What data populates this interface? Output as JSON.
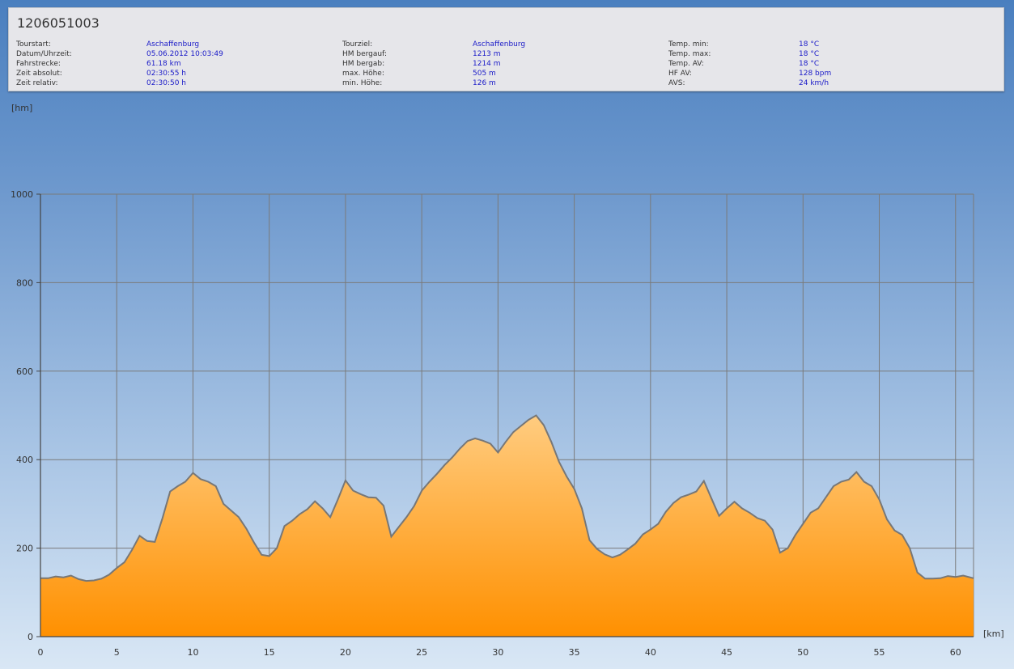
{
  "header": {
    "title": "1206051003",
    "columns": [
      [
        {
          "label": "Tourstart:",
          "value": "Aschaffenburg"
        },
        {
          "label": "Datum/Uhrzeit:",
          "value": "05.06.2012 10:03:49"
        },
        {
          "label": "Fahrstrecke:",
          "value": "61.18 km"
        },
        {
          "label": "Zeit absolut:",
          "value": "02:30:55 h"
        },
        {
          "label": "Zeit relativ:",
          "value": "02:30:50 h"
        }
      ],
      [
        {
          "label": "Tourziel:",
          "value": "Aschaffenburg"
        },
        {
          "label": "HM bergauf:",
          "value": "1213 m"
        },
        {
          "label": "HM bergab:",
          "value": "1214 m"
        },
        {
          "label": "max. Höhe:",
          "value": "505 m"
        },
        {
          "label": "min. Höhe:",
          "value": "126 m"
        }
      ],
      [
        {
          "label": "Temp. min:",
          "value": "18 °C"
        },
        {
          "label": "Temp. max:",
          "value": "18 °C"
        },
        {
          "label": "Temp. AV:",
          "value": "18 °C"
        },
        {
          "label": "HF AV:",
          "value": "128 bpm"
        },
        {
          "label": "AVS:",
          "value": "24 km/h"
        }
      ]
    ]
  },
  "colors": {
    "fill_top": "#ffcc80",
    "fill_bottom": "#ff9000",
    "line": "#777777",
    "grid": "#7a7a7a"
  },
  "chart_data": {
    "type": "area",
    "title": "",
    "xlabel": "[km]",
    "ylabel": "[hm]",
    "xlim": [
      0,
      61.18
    ],
    "ylim": [
      0,
      1000
    ],
    "x_ticks": [
      0,
      5,
      10,
      15,
      20,
      25,
      30,
      35,
      40,
      45,
      50,
      55,
      60
    ],
    "y_ticks": [
      0,
      200,
      400,
      600,
      800,
      1000
    ],
    "grid": true,
    "series": [
      {
        "x": [
          0,
          0.5,
          1,
          1.5,
          2,
          2.5,
          3,
          3.5,
          4,
          4.5,
          5,
          5.5,
          6,
          6.5,
          7,
          7.5,
          8,
          8.5,
          9,
          9.5,
          10,
          10.5,
          11,
          11.5,
          12,
          12.5,
          13,
          13.5,
          14,
          14.5,
          15,
          15.5,
          16,
          16.5,
          17,
          17.5,
          18,
          18.5,
          19,
          19.5,
          20,
          20.5,
          21,
          21.5,
          22,
          22.5,
          23,
          23.5,
          24,
          24.5,
          25,
          25.5,
          26,
          26.5,
          27,
          27.5,
          28,
          28.5,
          29,
          29.5,
          30,
          30.5,
          31,
          31.5,
          32,
          32.5,
          33,
          33.5,
          34,
          34.5,
          35,
          35.5,
          36,
          36.5,
          37,
          37.5,
          38,
          38.5,
          39,
          39.5,
          40,
          40.5,
          41,
          41.5,
          42,
          42.5,
          43,
          43.5,
          44,
          44.5,
          45,
          45.5,
          46,
          46.5,
          47,
          47.5,
          48,
          48.5,
          49,
          49.5,
          50,
          50.5,
          51,
          51.5,
          52,
          52.5,
          53,
          53.5,
          54,
          54.5,
          55,
          55.5,
          56,
          56.5,
          57,
          57.5,
          58,
          58.5,
          59,
          59.5,
          60,
          60.5,
          61.18
        ],
        "y": [
          132,
          132,
          136,
          134,
          138,
          130,
          126,
          127,
          131,
          140,
          155,
          168,
          196,
          228,
          216,
          214,
          268,
          328,
          340,
          350,
          370,
          356,
          350,
          340,
          300,
          285,
          270,
          244,
          213,
          185,
          182,
          200,
          250,
          262,
          277,
          288,
          306,
          290,
          270,
          310,
          353,
          330,
          322,
          315,
          314,
          296,
          226,
          248,
          270,
          295,
          330,
          350,
          368,
          388,
          405,
          425,
          442,
          448,
          443,
          436,
          416,
          440,
          462,
          476,
          490,
          500,
          478,
          440,
          395,
          362,
          334,
          290,
          218,
          198,
          186,
          179,
          185,
          197,
          210,
          231,
          242,
          255,
          282,
          302,
          315,
          321,
          328,
          352,
          312,
          273,
          290,
          305,
          290,
          280,
          268,
          262,
          242,
          190,
          200,
          230,
          255,
          280,
          290,
          315,
          340,
          350,
          355,
          372,
          350,
          340,
          310,
          265,
          240,
          230,
          200,
          145,
          131,
          131,
          132,
          137,
          135,
          138,
          132
        ]
      }
    ]
  }
}
